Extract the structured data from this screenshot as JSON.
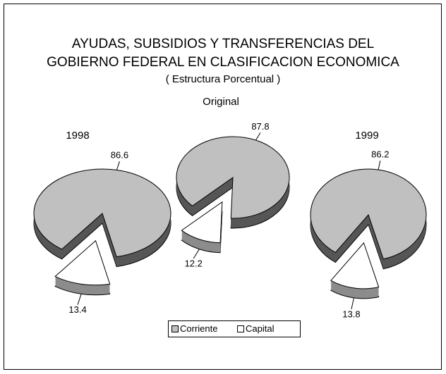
{
  "title": [
    "AYUDAS, SUBSIDIOS Y TRANSFERENCIAS DEL",
    "GOBIERNO FEDERAL EN CLASIFICACION ECONOMICA"
  ],
  "subtitle": "( Estructura Porcentual )",
  "chart_data": [
    {
      "type": "pie",
      "title": "1998",
      "categories": [
        "Corriente",
        "Capital"
      ],
      "values": [
        86.6,
        13.4
      ],
      "colors": [
        "#c0c0c0",
        "#ffffff"
      ]
    },
    {
      "type": "pie",
      "title": "Original",
      "categories": [
        "Corriente",
        "Capital"
      ],
      "values": [
        87.8,
        12.2
      ],
      "colors": [
        "#c0c0c0",
        "#ffffff"
      ]
    },
    {
      "type": "pie",
      "title": "1999",
      "categories": [
        "Corriente",
        "Capital"
      ],
      "values": [
        86.2,
        13.8
      ],
      "colors": [
        "#c0c0c0",
        "#ffffff"
      ]
    }
  ]
}
